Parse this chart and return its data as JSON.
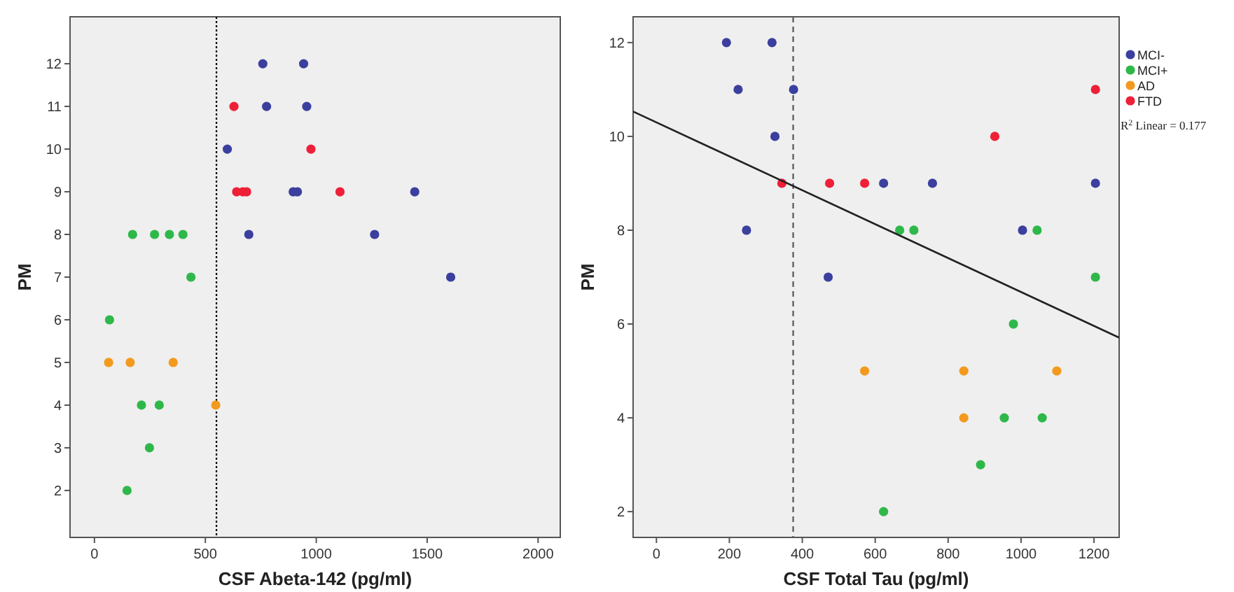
{
  "chart_data": [
    {
      "type": "scatter",
      "xlabel": "CSF Abeta-142 (pg/ml)",
      "ylabel": "PM",
      "xlim": [
        -110,
        2100
      ],
      "ylim": [
        0.9,
        13.1
      ],
      "xticks": [
        0,
        500,
        1000,
        1500,
        2000
      ],
      "yticks": [
        2,
        3,
        4,
        5,
        6,
        7,
        8,
        9,
        10,
        11,
        12
      ],
      "marker": "circle",
      "grid": false,
      "legend": false,
      "ref_lines": [
        {
          "axis": "x",
          "value": 550,
          "color": "#000000",
          "line_style": "dotted"
        }
      ],
      "series": [
        {
          "color": "#3b3f9e",
          "x": [
            759,
            943,
            776,
            957,
            599,
            896,
            915,
            1444,
            696,
            1263,
            1606
          ],
          "values": [
            12,
            12,
            11,
            11,
            10,
            9,
            9,
            9,
            8,
            8,
            7
          ]
        },
        {
          "color": "#2fb84a",
          "x": [
            172,
            271,
            338,
            399,
            435,
            68,
            212,
            292,
            248,
            147
          ],
          "values": [
            8,
            8,
            8,
            8,
            7,
            6,
            4,
            4,
            3,
            2
          ]
        },
        {
          "color": "#f39a1e",
          "x": [
            64,
            161,
            355,
            547
          ],
          "values": [
            5,
            5,
            5,
            4
          ]
        },
        {
          "color": "#ee2038",
          "x": [
            629,
            976,
            641,
            669,
            686,
            1107
          ],
          "values": [
            11,
            10,
            9,
            9,
            9,
            9
          ]
        }
      ]
    },
    {
      "type": "scatter",
      "xlabel": "CSF Total Tau (pg/ml)",
      "ylabel": "PM",
      "xlim": [
        -64,
        1269
      ],
      "ylim": [
        1.45,
        12.55
      ],
      "xticks": [
        0,
        200,
        400,
        600,
        800,
        1000,
        1200
      ],
      "yticks": [
        2,
        4,
        6,
        8,
        10,
        12
      ],
      "marker": "circle",
      "grid": false,
      "legend": "right",
      "annotations": [
        "R$^{2}$ Linear = 0.177"
      ],
      "ref_lines": [
        {
          "axis": "x",
          "value": 375,
          "color": "#555555",
          "line_style": "dashed"
        }
      ],
      "series": [
        {
          "name": "MCI-",
          "color": "#3b3f9e",
          "x": [
            192,
            317,
            224,
            376,
            325,
            623,
            757,
            1204,
            247,
            1004,
            471
          ],
          "values": [
            12,
            12,
            11,
            11,
            10,
            9,
            9,
            9,
            8,
            8,
            7
          ]
        },
        {
          "name": "MCI+",
          "color": "#2fb84a",
          "x": [
            667,
            706,
            1044,
            1204,
            979,
            954,
            1058,
            889,
            623
          ],
          "values": [
            8,
            8,
            8,
            7,
            6,
            4,
            4,
            3,
            2
          ]
        },
        {
          "name": "AD",
          "color": "#f39a1e",
          "x": [
            571,
            843,
            1098,
            843
          ],
          "values": [
            5,
            5,
            5,
            4
          ]
        },
        {
          "name": "FTD",
          "color": "#ee2038",
          "x": [
            344,
            475,
            571,
            928,
            1204
          ],
          "values": [
            9,
            9,
            9,
            10,
            11
          ]
        },
        {
          "type": "line",
          "marker": "none",
          "color": "#222222",
          "x": [
            -64,
            1269
          ],
          "values": [
            10.53,
            5.71
          ]
        }
      ]
    }
  ]
}
